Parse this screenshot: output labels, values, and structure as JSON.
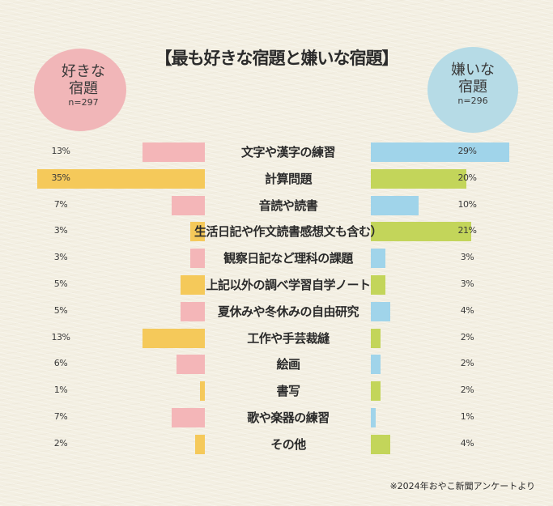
{
  "title": "【最も好きな宿題と嫌いな宿題】",
  "like_badge": {
    "line1": "好きな",
    "line2": "宿題",
    "n": "n=297",
    "color": "#f1b6b8"
  },
  "dislike_badge": {
    "line1": "嫌いな",
    "line2": "宿題",
    "n": "n=296",
    "color": "#b6dbe6"
  },
  "colors": {
    "pink": "#f4b6b8",
    "yellow": "#f5c95a",
    "blue": "#a0d4ea",
    "green": "#c3d55a",
    "background": "#f3efe2"
  },
  "source": "※2024年おやこ新聞アンケートより",
  "rows": [
    {
      "label": "文字や漢字の練習",
      "like": "13%",
      "dislike": "29%"
    },
    {
      "label": "計算問題",
      "like": "35%",
      "dislike": "20%"
    },
    {
      "label": "音読や読書",
      "like": "7%",
      "dislike": "10%"
    },
    {
      "label": "生活日記や作文読書感想文も含む）",
      "like": "3%",
      "dislike": "21%"
    },
    {
      "label": "観察日記など理科の課題",
      "like": "3%",
      "dislike": "3%"
    },
    {
      "label": "上記以外の調べ学習自学ノート",
      "like": "5%",
      "dislike": "3%"
    },
    {
      "label": "夏休みや冬休みの自由研究",
      "like": "5%",
      "dislike": "4%"
    },
    {
      "label": "工作や手芸裁縫",
      "like": "13%",
      "dislike": "2%"
    },
    {
      "label": "絵画",
      "like": "6%",
      "dislike": "2%"
    },
    {
      "label": "書写",
      "like": "1%",
      "dislike": "2%"
    },
    {
      "label": "歌や楽器の練習",
      "like": "7%",
      "dislike": "1%"
    },
    {
      "label": "その他",
      "like": "2%",
      "dislike": "4%"
    }
  ],
  "chart_data": {
    "type": "bar",
    "title": "【最も好きな宿題と嫌いな宿題】",
    "orientation": "horizontal-diverging",
    "categories": [
      "文字や漢字の練習",
      "計算問題",
      "音読や読書",
      "生活日記や作文読書感想文も含む）",
      "観察日記など理科の課題",
      "上記以外の調べ学習自学ノート",
      "夏休みや冬休みの自由研究",
      "工作や手芸裁縫",
      "絵画",
      "書写",
      "歌や楽器の練習",
      "その他"
    ],
    "series": [
      {
        "name": "好きな宿題 (n=297)",
        "side": "left",
        "values": [
          13,
          35,
          7,
          3,
          3,
          5,
          5,
          13,
          6,
          1,
          7,
          2
        ],
        "colors": [
          "#f4b6b8",
          "#f5c95a"
        ]
      },
      {
        "name": "嫌いな宿題 (n=296)",
        "side": "right",
        "values": [
          29,
          20,
          10,
          21,
          3,
          3,
          4,
          2,
          2,
          2,
          1,
          4
        ],
        "colors": [
          "#a0d4ea",
          "#c3d55a"
        ]
      }
    ],
    "unit": "%",
    "xlabel": "",
    "ylabel": "",
    "grid": false,
    "legend": "circle badges top-left and top-right",
    "annotation": "※2024年おやこ新聞アンケートより"
  }
}
